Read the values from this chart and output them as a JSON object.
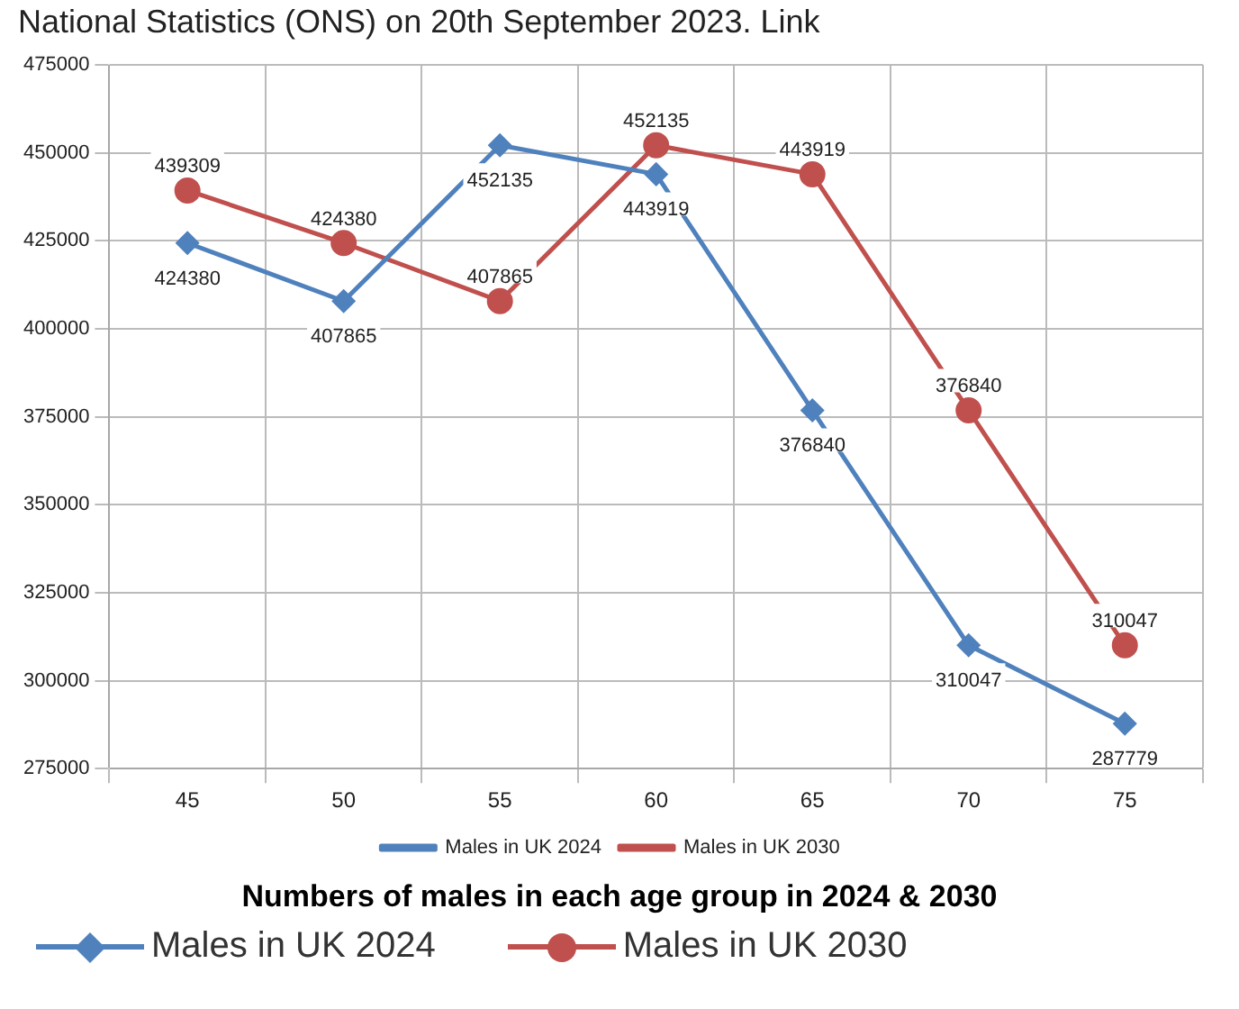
{
  "chart_data": {
    "type": "line",
    "title": "Numbers of males in each age group in 2024 & 2030",
    "annotations": [
      "National Statistics (ONS) on 20th September 2023. Link"
    ],
    "categories": [
      "45",
      "50",
      "55",
      "60",
      "65",
      "70",
      "75"
    ],
    "series": [
      {
        "name": "Males in UK 2024",
        "color": "#4f81bd",
        "marker": "diamond",
        "values": [
          424380,
          407865,
          452135,
          443919,
          376840,
          310047,
          287779
        ]
      },
      {
        "name": "Males in UK 2030",
        "color": "#c0504d",
        "marker": "circle",
        "values": [
          439309,
          424380,
          407865,
          452135,
          443919,
          376840,
          310047
        ]
      }
    ],
    "ylim": [
      275000,
      475000
    ],
    "yticks": [
      275000,
      300000,
      325000,
      350000,
      375000,
      400000,
      425000,
      450000,
      475000
    ],
    "grid": true,
    "legend": "bottom",
    "data_labels": true
  }
}
